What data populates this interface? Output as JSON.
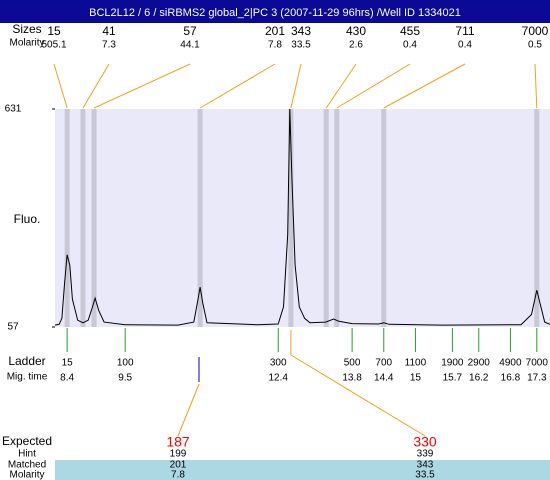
{
  "header": {
    "title": "BCL2L12 / 6 / siRBMS2 global_2|PC 3 (2007-11-29 96hrs) /Well ID 1334021"
  },
  "chart_data": {
    "type": "line",
    "y_label": "Fluo.",
    "x": [
      8.17,
      8.25,
      8.3,
      8.35,
      8.4,
      8.45,
      8.5,
      8.6,
      8.7,
      8.8,
      8.88,
      8.93,
      9.0,
      9.1,
      9.5,
      10.5,
      10.8,
      10.88,
      10.92,
      10.97,
      11.05,
      12.0,
      12.4,
      12.5,
      12.58,
      12.62,
      12.66,
      12.72,
      12.8,
      12.9,
      13.0,
      13.3,
      13.45,
      13.55,
      13.8,
      14.3,
      14.4,
      14.5,
      15.5,
      17.0,
      17.2,
      17.3,
      17.36,
      17.45,
      17.55
    ],
    "values": [
      62,
      64,
      80,
      170,
      247,
      220,
      130,
      75,
      68,
      75,
      110,
      133,
      100,
      70,
      63,
      62,
      70,
      130,
      162,
      120,
      68,
      63,
      65,
      110,
      300,
      631,
      450,
      220,
      110,
      80,
      68,
      70,
      78,
      72,
      66,
      65,
      68,
      64,
      62,
      63,
      90,
      154,
      120,
      70,
      64
    ],
    "color": "#000000",
    "xlim": [
      8.17,
      17.55
    ],
    "ylim": [
      57,
      631
    ],
    "yticks": [
      57,
      631
    ]
  },
  "peaks": {
    "size_label": "Sizes",
    "molarity_label": "Molarity",
    "items": [
      {
        "size": 15,
        "molarity": 505.1,
        "mig_time": 8.4
      },
      {
        "size": 41,
        "molarity": 7.3,
        "mig_time": 8.7
      },
      {
        "size": 57,
        "molarity": 44.1,
        "mig_time": 8.91
      },
      {
        "size": 201,
        "molarity": 7.8,
        "mig_time": 10.92
      },
      {
        "size": 343,
        "molarity": 33.5,
        "mig_time": 12.64
      },
      {
        "size": 430,
        "molarity": 2.6,
        "mig_time": 13.31
      },
      {
        "size": 455,
        "molarity": 0.4,
        "mig_time": 13.51
      },
      {
        "size": 711,
        "molarity": 0.4,
        "mig_time": 14.4
      },
      {
        "size": 7000,
        "molarity": 0.5,
        "mig_time": 17.3
      }
    ]
  },
  "ladder": {
    "label": "Ladder",
    "mig_time_label": "Mig. time",
    "items": [
      {
        "size": 15,
        "mig_time": 8.4
      },
      {
        "size": 100,
        "mig_time": 9.5
      },
      {
        "size": 300,
        "mig_time": 12.4
      },
      {
        "size": 500,
        "mig_time": 13.8
      },
      {
        "size": 700,
        "mig_time": 14.4
      },
      {
        "size": 1100,
        "mig_time": 15
      },
      {
        "size": 1900,
        "mig_time": 15.7
      },
      {
        "size": 2900,
        "mig_time": 16.2
      },
      {
        "size": 4900,
        "mig_time": 16.8
      },
      {
        "size": 7000,
        "mig_time": 17.3
      }
    ]
  },
  "expected": {
    "label": "Expected",
    "hint_label": "Hint",
    "matched_label": "Matched",
    "molarity_label": "Molarity",
    "items": [
      {
        "expected": 187,
        "hint": 199,
        "matched": 201,
        "molarity": 7.8,
        "mig_time": 10.9
      },
      {
        "expected": 330,
        "hint": 339,
        "matched": 343,
        "molarity": 33.5,
        "mig_time": 12.64
      }
    ]
  }
}
